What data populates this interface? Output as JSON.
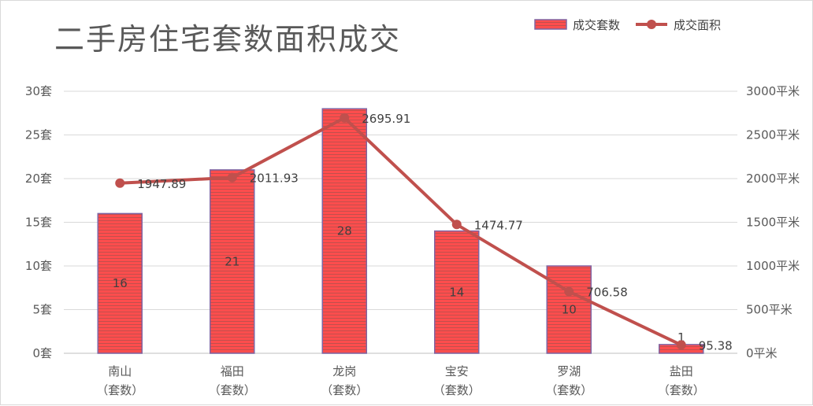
{
  "chart_data": {
    "type": "bar",
    "title": "二手房住宅套数面积成交",
    "categories": [
      [
        "南山",
        "（套数）"
      ],
      [
        "福田",
        "（套数）"
      ],
      [
        "龙岗",
        "（套数）"
      ],
      [
        "宝安",
        "（套数）"
      ],
      [
        "罗湖",
        "（套数）"
      ],
      [
        "盐田",
        "（套数）"
      ]
    ],
    "series": [
      {
        "name": "成交套数",
        "type": "bar",
        "axis": "left",
        "values": [
          16,
          21,
          28,
          14,
          10,
          1
        ],
        "color": "#ff4d4d",
        "stripe_color": "#8064a2"
      },
      {
        "name": "成交面积",
        "type": "line",
        "axis": "right",
        "values": [
          1947.89,
          2011.93,
          2695.91,
          1474.77,
          706.58,
          95.38
        ],
        "color": "#c0504d"
      }
    ],
    "y_left": {
      "min": 0,
      "max": 30,
      "step": 5,
      "suffix": "套"
    },
    "y_right": {
      "min": 0,
      "max": 3000,
      "step": 500,
      "suffix": "平米"
    },
    "grid": true,
    "legend_position": "top-right"
  }
}
